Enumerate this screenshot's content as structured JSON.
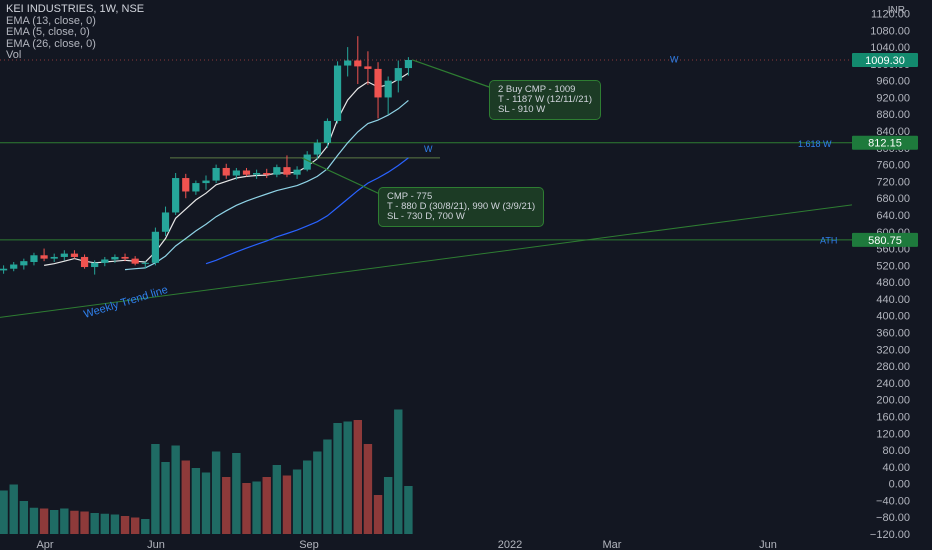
{
  "header": {
    "title": "KEI INDUSTRIES, 1W, NSE",
    "indicators": [
      "EMA (13, close, 0)",
      "EMA (5, close, 0)",
      "EMA (26, close, 0)",
      "Vol"
    ],
    "currency": "INR"
  },
  "chart_data": {
    "type": "candlestick",
    "symbol": "KEI INDUSTRIES",
    "interval": "1W",
    "exchange": "NSE",
    "price_axis": {
      "range": [
        -120,
        1120
      ],
      "ticks": [
        "1120.00",
        "1080.00",
        "1040.00",
        "1000.00",
        "960.00",
        "920.00",
        "880.00",
        "840.00",
        "800.00",
        "760.00",
        "720.00",
        "680.00",
        "640.00",
        "600.00",
        "560.00",
        "520.00",
        "480.00",
        "440.00",
        "400.00",
        "360.00",
        "320.00",
        "280.00",
        "240.00",
        "200.00",
        "160.00",
        "120.00",
        "80.00",
        "40.00",
        "0.00",
        "−40.00",
        "−80.00",
        "−120.00"
      ]
    },
    "time_axis": {
      "ticks": [
        "Apr",
        "Jun",
        "Sep",
        "2022",
        "Mar",
        "Jun"
      ]
    },
    "colors": {
      "up": "#26a69a",
      "down": "#ef5350",
      "vol_up": "#1f6b64",
      "vol_down": "#8e3a3a",
      "ema_fast": "#e6e6e6",
      "ema_mid": "#8fd3e6",
      "ema_slow": "#2962ff",
      "hline": "#2e7d32",
      "label_green": "#1e7a3c",
      "label_teal": "#138a6e"
    },
    "candles": [
      {
        "o": 508,
        "h": 520,
        "l": 500,
        "c": 512
      },
      {
        "o": 512,
        "h": 528,
        "l": 506,
        "c": 522
      },
      {
        "o": 520,
        "h": 536,
        "l": 510,
        "c": 530
      },
      {
        "o": 528,
        "h": 550,
        "l": 520,
        "c": 544
      },
      {
        "o": 544,
        "h": 560,
        "l": 530,
        "c": 536
      },
      {
        "o": 536,
        "h": 548,
        "l": 528,
        "c": 540
      },
      {
        "o": 540,
        "h": 556,
        "l": 532,
        "c": 548
      },
      {
        "o": 548,
        "h": 556,
        "l": 536,
        "c": 540
      },
      {
        "o": 540,
        "h": 546,
        "l": 512,
        "c": 516
      },
      {
        "o": 516,
        "h": 532,
        "l": 498,
        "c": 526
      },
      {
        "o": 526,
        "h": 540,
        "l": 518,
        "c": 534
      },
      {
        "o": 534,
        "h": 546,
        "l": 526,
        "c": 540
      },
      {
        "o": 540,
        "h": 548,
        "l": 530,
        "c": 536
      },
      {
        "o": 536,
        "h": 542,
        "l": 520,
        "c": 524
      },
      {
        "o": 524,
        "h": 530,
        "l": 512,
        "c": 526
      },
      {
        "o": 526,
        "h": 610,
        "l": 520,
        "c": 600
      },
      {
        "o": 600,
        "h": 660,
        "l": 590,
        "c": 646
      },
      {
        "o": 646,
        "h": 740,
        "l": 640,
        "c": 728
      },
      {
        "o": 728,
        "h": 738,
        "l": 680,
        "c": 696
      },
      {
        "o": 696,
        "h": 722,
        "l": 688,
        "c": 716
      },
      {
        "o": 716,
        "h": 734,
        "l": 700,
        "c": 722
      },
      {
        "o": 722,
        "h": 760,
        "l": 716,
        "c": 752
      },
      {
        "o": 752,
        "h": 762,
        "l": 726,
        "c": 734
      },
      {
        "o": 734,
        "h": 752,
        "l": 724,
        "c": 746
      },
      {
        "o": 746,
        "h": 752,
        "l": 732,
        "c": 736
      },
      {
        "o": 736,
        "h": 748,
        "l": 726,
        "c": 740
      },
      {
        "o": 740,
        "h": 750,
        "l": 728,
        "c": 736
      },
      {
        "o": 736,
        "h": 760,
        "l": 730,
        "c": 754
      },
      {
        "o": 754,
        "h": 782,
        "l": 730,
        "c": 736
      },
      {
        "o": 736,
        "h": 756,
        "l": 726,
        "c": 748
      },
      {
        "o": 748,
        "h": 792,
        "l": 744,
        "c": 784
      },
      {
        "o": 784,
        "h": 820,
        "l": 772,
        "c": 812
      },
      {
        "o": 812,
        "h": 870,
        "l": 800,
        "c": 864
      },
      {
        "o": 864,
        "h": 1006,
        "l": 858,
        "c": 996
      },
      {
        "o": 996,
        "h": 1040,
        "l": 970,
        "c": 1008
      },
      {
        "o": 1008,
        "h": 1066,
        "l": 952,
        "c": 994
      },
      {
        "o": 994,
        "h": 1030,
        "l": 950,
        "c": 988
      },
      {
        "o": 988,
        "h": 1004,
        "l": 870,
        "c": 920
      },
      {
        "o": 920,
        "h": 970,
        "l": 880,
        "c": 960
      },
      {
        "o": 960,
        "h": 1008,
        "l": 932,
        "c": 990
      },
      {
        "o": 990,
        "h": 1016,
        "l": 972,
        "c": 1009.3
      }
    ],
    "volume": [
      58,
      66,
      44,
      35,
      34,
      32,
      34,
      31,
      30,
      28,
      27,
      26,
      24,
      22,
      20,
      120,
      96,
      118,
      98,
      88,
      82,
      110,
      76,
      108,
      68,
      70,
      76,
      92,
      78,
      86,
      98,
      110,
      126,
      148,
      150,
      152,
      120,
      52,
      76,
      166,
      64
    ],
    "ema5": [
      null,
      null,
      null,
      null,
      520,
      524,
      530,
      536,
      530,
      526,
      528,
      530,
      532,
      530,
      528,
      552,
      584,
      632,
      654,
      676,
      692,
      712,
      720,
      728,
      732,
      734,
      735,
      740,
      740,
      742,
      756,
      774,
      804,
      868,
      914,
      941,
      957,
      945,
      950,
      963,
      978
    ],
    "ema13": [
      null,
      null,
      null,
      null,
      null,
      null,
      null,
      null,
      null,
      null,
      null,
      null,
      510,
      512,
      514,
      526,
      542,
      566,
      584,
      602,
      618,
      636,
      650,
      663,
      673,
      682,
      690,
      698,
      704,
      710,
      720,
      732,
      750,
      782,
      812,
      838,
      858,
      866,
      878,
      893,
      913
    ],
    "ema26": [
      null,
      null,
      null,
      null,
      null,
      null,
      null,
      null,
      null,
      null,
      null,
      null,
      null,
      null,
      null,
      null,
      null,
      null,
      null,
      null,
      524,
      532,
      542,
      552,
      561,
      570,
      578,
      588,
      596,
      604,
      614,
      624,
      638,
      658,
      678,
      698,
      716,
      728,
      742,
      758,
      776
    ],
    "horizontal_lines": [
      {
        "price": 812.15,
        "label": "812.15",
        "style": "green"
      },
      {
        "price": 580.75,
        "label": "580.75",
        "style": "green"
      },
      {
        "price": 1009.3,
        "label": "1009.30",
        "style": "teal"
      }
    ],
    "annotations": {
      "fib_label": "1.618 W",
      "ath_label": "ATH",
      "w_label": "W",
      "trend_label": "Weekly Trend line",
      "note1": "2 Buy CMP - 1009\nT - 1187 W (12/11//21)\nSL - 910 W",
      "note2": "CMP - 775\nT - 880 D (30/8/21), 990 W (3/9/21)\nSL - 730 D, 700 W"
    }
  }
}
